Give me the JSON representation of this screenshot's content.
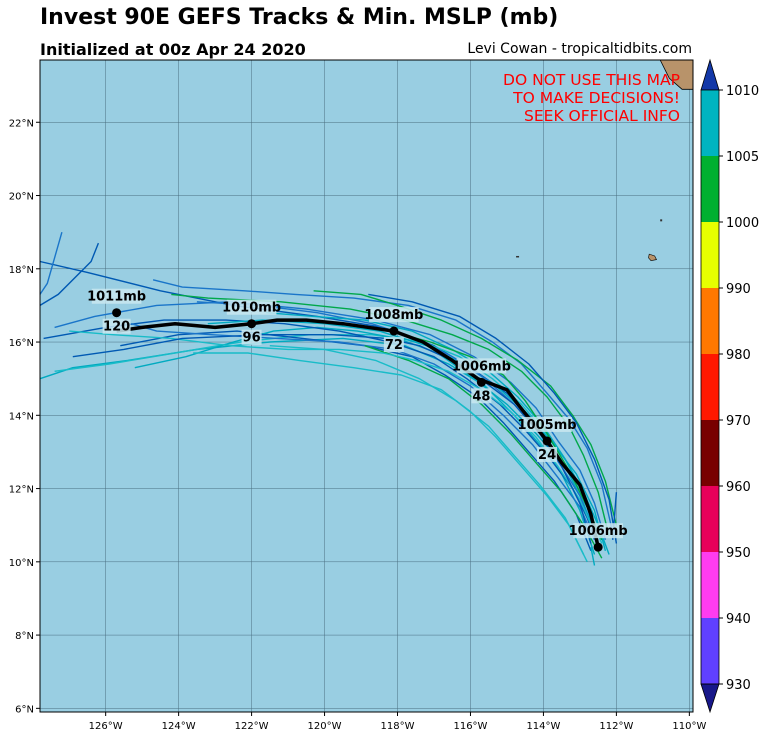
{
  "title": "Invest 90E GEFS Tracks & Min. MSLP (mb)",
  "subtitle": "Initialized at 00z Apr 24 2020",
  "credit": "Levi Cowan - tropicaltidbits.com",
  "warning": [
    "DO NOT USE THIS MAP",
    "TO MAKE DECISIONS!",
    "SEEK OFFICIAL INFO"
  ],
  "colors": {
    "ocean": "#99cee2",
    "land": "#b8936a",
    "mean_track": "#000000",
    "warning_text": "#ff0000",
    "member_tracks": [
      "#0059b3",
      "#1a75c9",
      "#00aac0",
      "#19bcc8",
      "#00a84a"
    ]
  },
  "map": {
    "lon_range": [
      -127.8,
      -109.9
    ],
    "lat_range": [
      5.9,
      23.7
    ],
    "lon_ticks": [
      "126°W",
      "124°W",
      "122°W",
      "120°W",
      "118°W",
      "116°W",
      "114°W",
      "112°W",
      "110°W"
    ],
    "lat_ticks": [
      "6°N",
      "8°N",
      "10°N",
      "12°N",
      "14°N",
      "16°N",
      "18°N",
      "20°N",
      "22°N"
    ],
    "gridlines": true
  },
  "mean_track": [
    [
      -112.5,
      10.4
    ],
    [
      -112.7,
      11.3
    ],
    [
      -113.0,
      12.1
    ],
    [
      -113.5,
      12.7
    ],
    [
      -113.9,
      13.3
    ],
    [
      -114.3,
      13.8
    ],
    [
      -114.7,
      14.3
    ],
    [
      -115.0,
      14.7
    ],
    [
      -115.8,
      15.0
    ],
    [
      -116.5,
      15.5
    ],
    [
      -117.3,
      16.0
    ],
    [
      -118.1,
      16.3
    ],
    [
      -119.5,
      16.5
    ],
    [
      -120.5,
      16.6
    ],
    [
      -121.3,
      16.6
    ],
    [
      -122.0,
      16.5
    ],
    [
      -123.0,
      16.4
    ],
    [
      -124.1,
      16.5
    ],
    [
      -125.0,
      16.4
    ],
    [
      -125.7,
      16.3
    ]
  ],
  "track_labels": [
    {
      "pressure": "1006mb",
      "hour": "",
      "lon": -112.5,
      "lat": 10.4
    },
    {
      "pressure": "1005mb",
      "hour": "24",
      "lon": -113.9,
      "lat": 13.3
    },
    {
      "pressure": "1006mb",
      "hour": "48",
      "lon": -115.7,
      "lat": 14.9
    },
    {
      "pressure": "1008mb",
      "hour": "72",
      "lon": -118.1,
      "lat": 16.3
    },
    {
      "pressure": "1010mb",
      "hour": "96",
      "lon": -122.0,
      "lat": 16.5
    },
    {
      "pressure": "1011mb",
      "hour": "120",
      "lon": -125.7,
      "lat": 16.8
    }
  ],
  "colorbar": {
    "levels": [
      "1010",
      "1005",
      "1000",
      "990",
      "980",
      "970",
      "960",
      "950",
      "940",
      "930"
    ],
    "colors": [
      "#1338a8",
      "#00b4c0",
      "#00b030",
      "#e6ff00",
      "#ff7800",
      "#ff1800",
      "#780000",
      "#e8005a",
      "#ff3cf0",
      "#6040ff",
      "#18188a"
    ]
  }
}
